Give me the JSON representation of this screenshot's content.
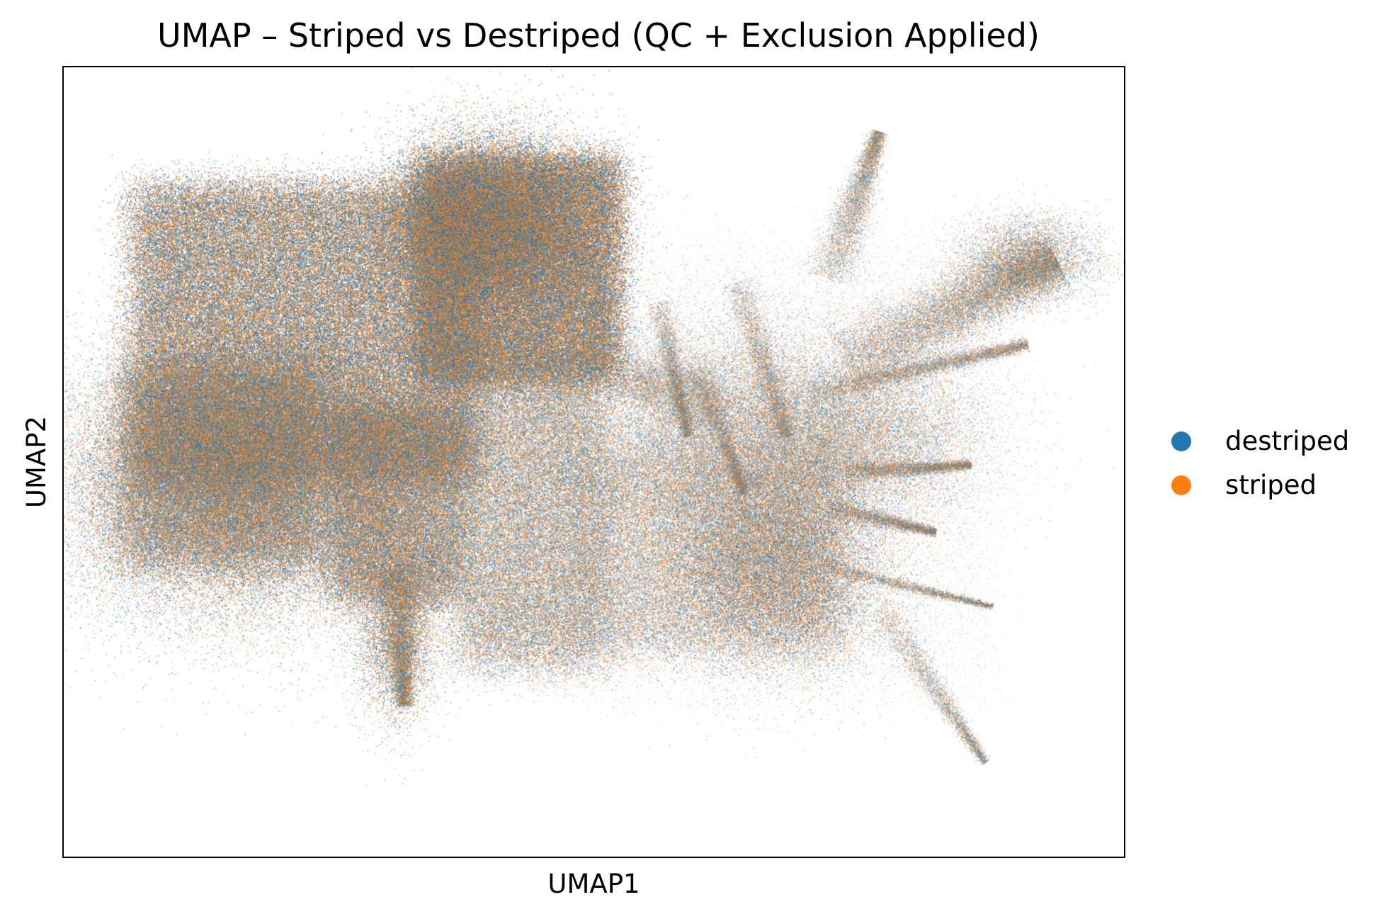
{
  "chart_data": {
    "type": "scatter",
    "title": "UMAP – Striped vs Destriped (QC + Exclusion Applied)",
    "xlabel": "UMAP1",
    "ylabel": "UMAP2",
    "xticks": [],
    "yticks": [],
    "grid": false,
    "legend_position": "right",
    "series": [
      {
        "name": "destriped",
        "color": "#1f77b4"
      },
      {
        "name": "striped",
        "color": "#ff7f0e"
      }
    ]
  }
}
